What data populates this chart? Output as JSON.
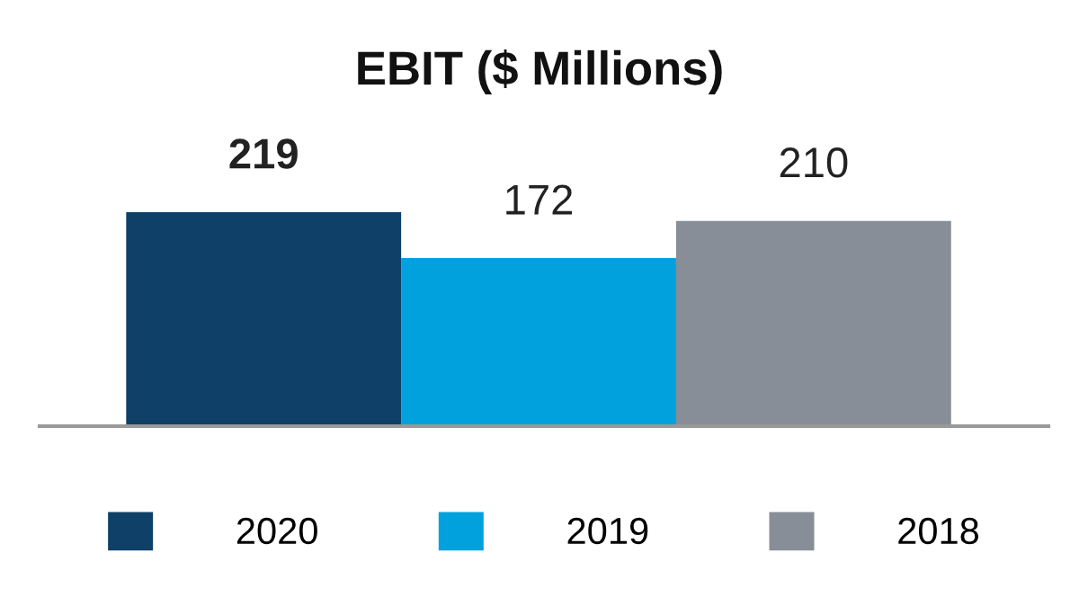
{
  "chart_data": {
    "type": "bar",
    "title": "EBIT ($ Millions)",
    "categories": [
      null
    ],
    "series": [
      {
        "name": "2020",
        "color": "#0e4068",
        "values": [
          219
        ]
      },
      {
        "name": "2019",
        "color": "#00a1dd",
        "values": [
          172
        ]
      },
      {
        "name": "2018",
        "color": "#878e97",
        "values": [
          210
        ]
      }
    ],
    "data_labels": true,
    "legend": "bottom",
    "grid": false
  }
}
